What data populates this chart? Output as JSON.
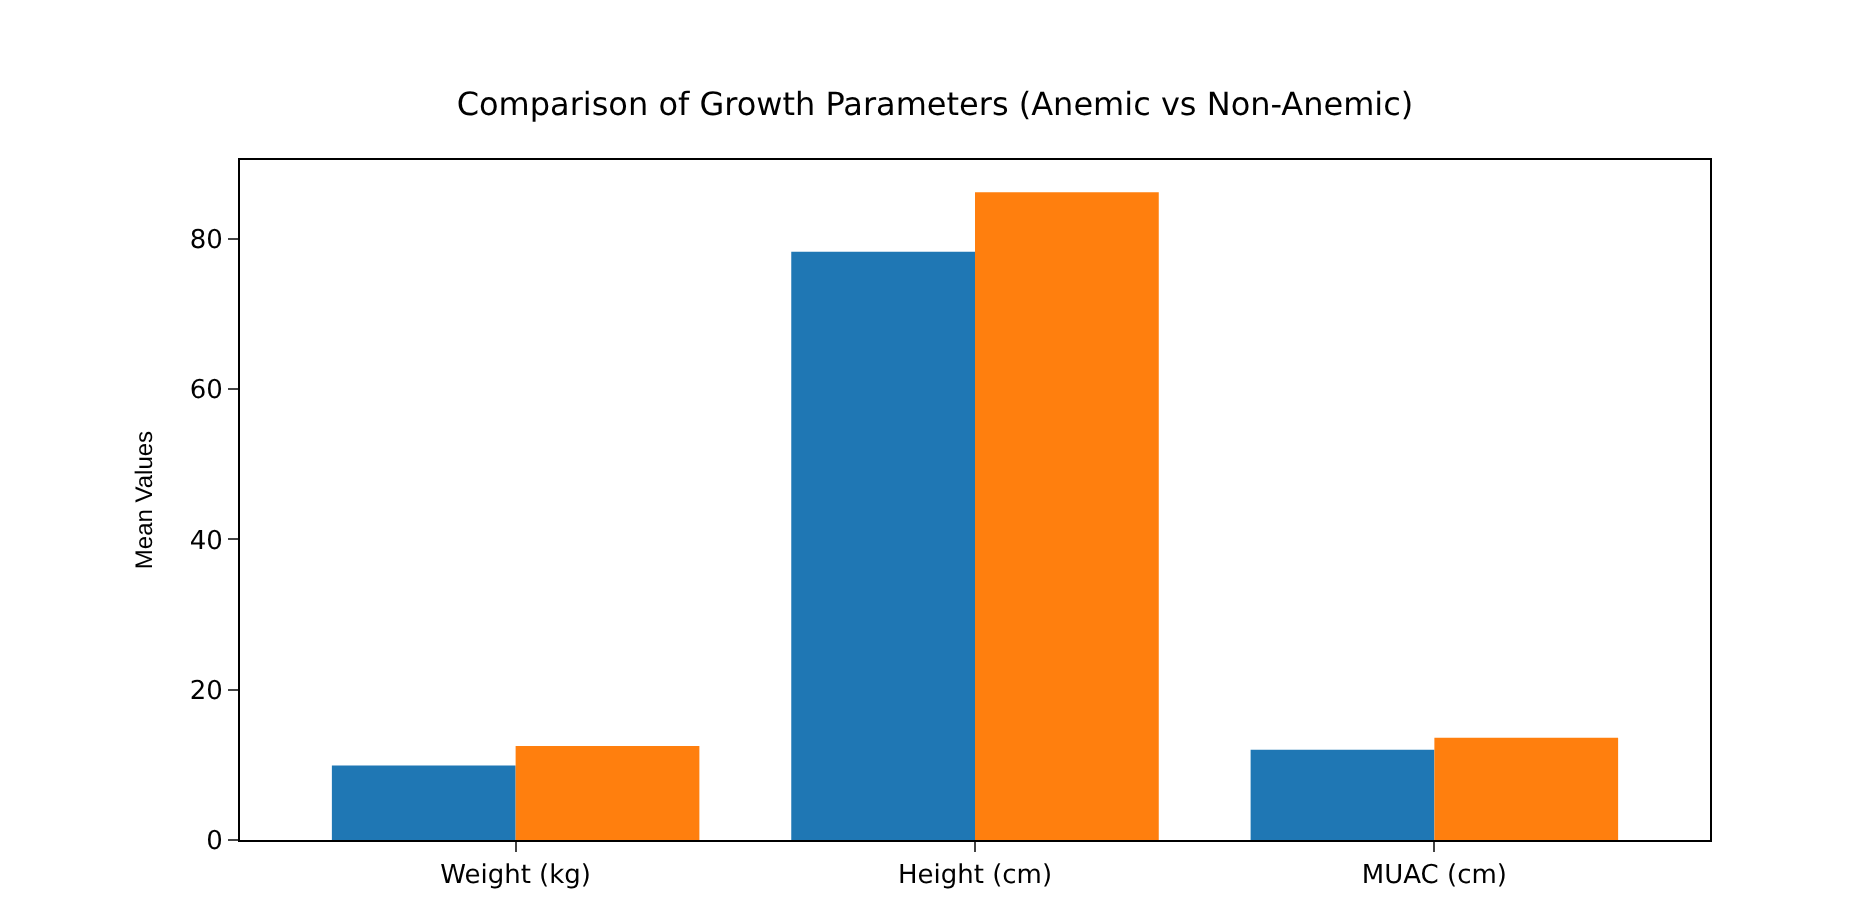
{
  "chart_data": {
    "type": "bar",
    "title": "Comparison of Growth Parameters (Anemic vs Non-Anemic)",
    "ylabel": "Mean Values",
    "categories": [
      "Weight (kg)",
      "Height (cm)",
      "MUAC (cm)"
    ],
    "series": [
      {
        "color": "#1f77b4",
        "values": [
          9.9,
          78.3,
          12.0
        ]
      },
      {
        "color": "#ff7f0e",
        "values": [
          12.5,
          86.2,
          13.6
        ]
      }
    ],
    "ylim": [
      0,
      90.5
    ],
    "yticks": [
      0,
      20,
      40,
      60,
      80
    ]
  }
}
